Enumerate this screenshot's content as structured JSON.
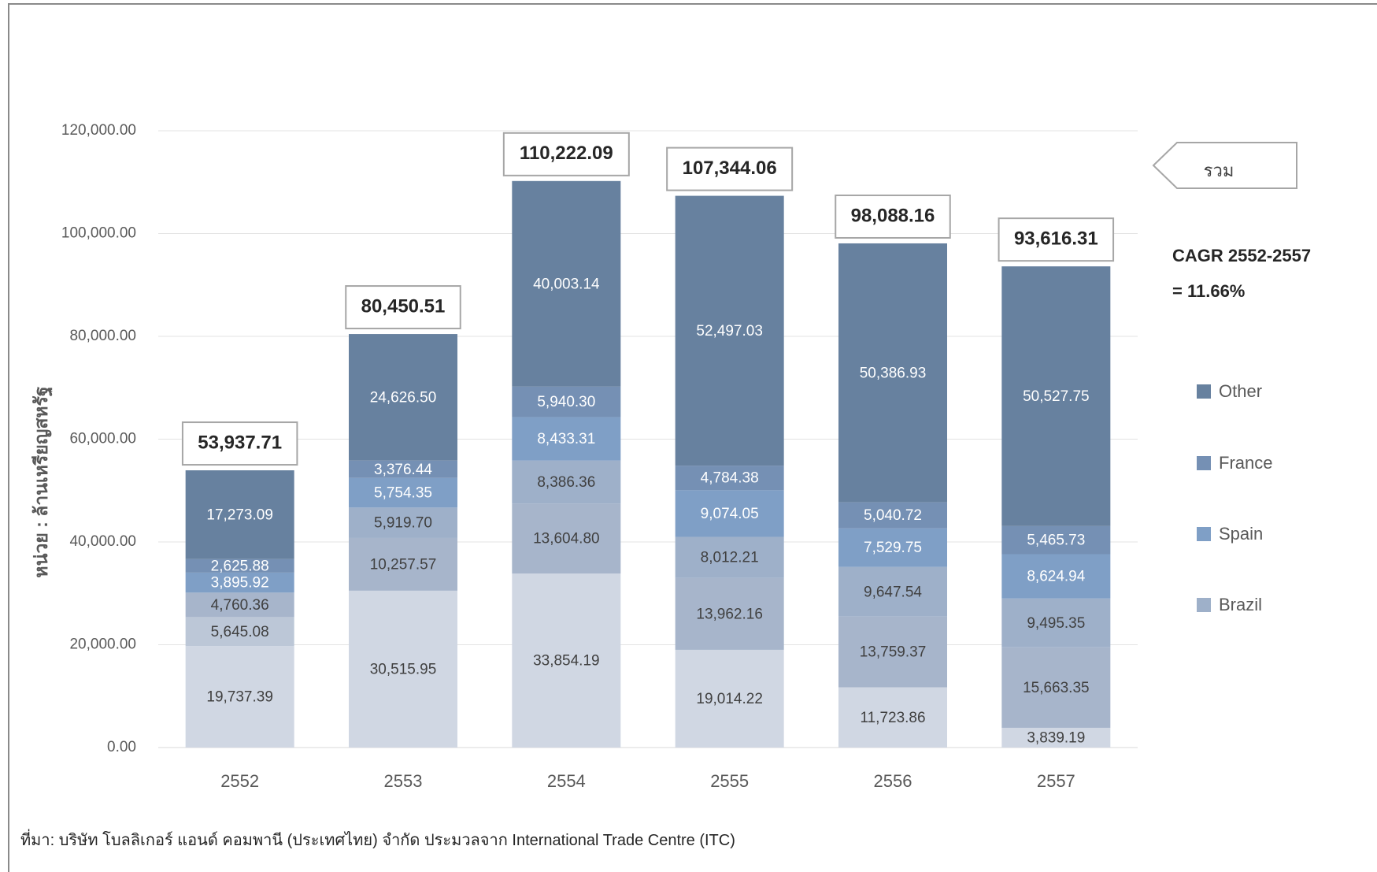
{
  "chart_data": {
    "type": "bar",
    "stacked": true,
    "categories": [
      "2552",
      "2553",
      "2554",
      "2555",
      "2556",
      "2557"
    ],
    "series": [
      {
        "name": "",
        "color": "#d0d7e3",
        "values": [
          19737.39,
          30515.95,
          33854.19,
          19014.22,
          11723.86,
          3839.19
        ]
      },
      {
        "name": "",
        "color": "#bcc7d7",
        "values": [
          5645.08,
          null,
          null,
          null,
          null,
          null
        ]
      },
      {
        "name": "",
        "color": "#a7b5cb",
        "values": [
          4760.36,
          10257.57,
          13604.8,
          13962.16,
          13759.37,
          15663.35
        ]
      },
      {
        "name": "Brazil",
        "color": "#9eb0c9",
        "values": [
          null,
          5919.7,
          8386.36,
          8012.21,
          9647.54,
          9495.35
        ]
      },
      {
        "name": "Spain",
        "color": "#7f9fc6",
        "values": [
          3895.92,
          5754.35,
          8433.31,
          9074.05,
          7529.75,
          8624.94
        ]
      },
      {
        "name": "France",
        "color": "#7590b4",
        "values": [
          2625.88,
          3376.44,
          5940.3,
          4784.38,
          5040.72,
          5465.73
        ]
      },
      {
        "name": "Other",
        "color": "#67819f",
        "values": [
          17273.09,
          24626.5,
          40003.14,
          52497.03,
          50386.93,
          50527.75
        ]
      }
    ],
    "segment_labels": [
      [
        "19,737.39",
        "5,645.08",
        "4,760.36",
        null,
        "3,895.92",
        "2,625.88",
        "17,273.09"
      ],
      [
        "30,515.95",
        null,
        "10,257.57",
        "5,919.70",
        "5,754.35",
        "3,376.44",
        "24,626.50"
      ],
      [
        "33,854.19",
        null,
        "13,604.80",
        "8,386.36",
        "8,433.31",
        "5,940.30",
        "40,003.14"
      ],
      [
        "19,014.22",
        null,
        "13,962.16",
        "8,012.21",
        "9,074.05",
        "4,784.38",
        "52,497.03"
      ],
      [
        "11,723.86",
        null,
        "13,759.37",
        "9,647.54",
        "7,529.75",
        "5,040.72",
        "50,386.93"
      ],
      [
        "3,839.19",
        null,
        "15,663.35",
        "9,495.35",
        "8,624.94",
        "5,465.73",
        "50,527.75"
      ]
    ],
    "totals": [
      53937.71,
      80450.51,
      110222.09,
      107344.06,
      98088.16,
      93616.31
    ],
    "total_labels": [
      "53,937.71",
      "80,450.51",
      "110,222.09",
      "107,344.06",
      "98,088.16",
      "93,616.31"
    ],
    "ylim": [
      0,
      120000
    ],
    "yticks": [
      0,
      20000,
      40000,
      60000,
      80000,
      100000,
      120000
    ],
    "ytick_labels": [
      "0.00",
      "20,000.00",
      "40,000.00",
      "60,000.00",
      "80,000.00",
      "100,000.00",
      "120,000.00"
    ],
    "ylabel": "หน่วย : ล้านเหรียญสหรัฐ",
    "xlabel": "",
    "title": "",
    "grid": true,
    "legend": {
      "position": "right",
      "entries": [
        {
          "name": "Other",
          "color": "#67819f"
        },
        {
          "name": "France",
          "color": "#7590b4"
        },
        {
          "name": "Spain",
          "color": "#7f9fc6"
        },
        {
          "name": "Brazil",
          "color": "#9eb0c9"
        }
      ]
    },
    "annotations": {
      "total_callout": "รวม",
      "cagr_line1": "CAGR 2552-2557",
      "cagr_line2": "= 11.66%"
    }
  },
  "source": "ที่มา: บริษัท โบลลิเกอร์ แอนด์ คอมพานี (ประเทศไทย) จำกัด ประมวลจาก International Trade Centre (ITC)"
}
